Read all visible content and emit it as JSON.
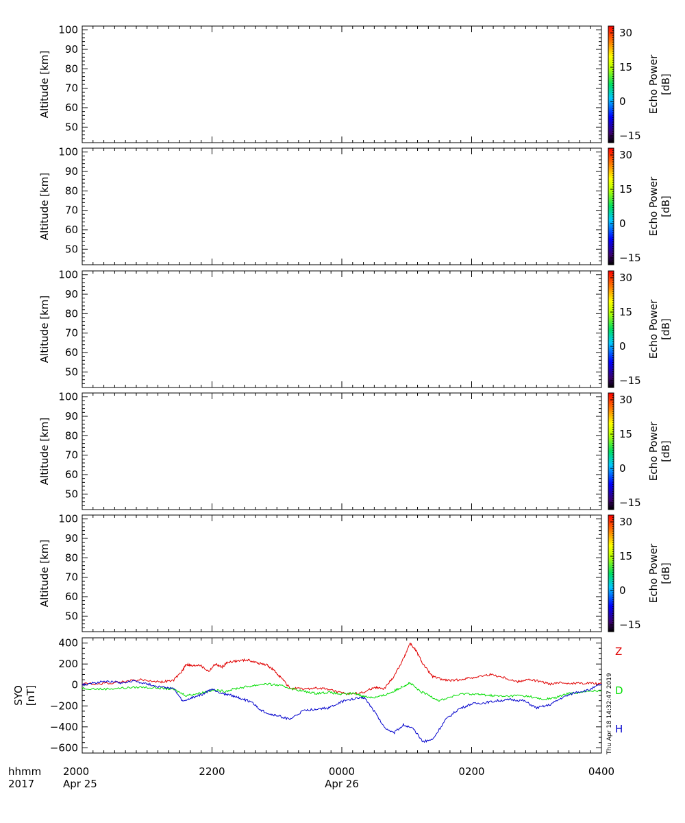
{
  "chart_data": [
    {
      "type": "heatmap",
      "panel": 1,
      "ylabel": "Altitude  [km]",
      "yticks": [
        50,
        60,
        70,
        80,
        90,
        100
      ],
      "ylim": [
        42,
        102
      ],
      "xlim_hours": [
        20,
        28
      ],
      "data": [],
      "colorbar": {
        "label_line1": "Echo Power",
        "label_line2": "[dB]",
        "ticks": [
          "30",
          "15",
          "0",
          "−15"
        ],
        "range": [
          -18,
          33
        ]
      }
    },
    {
      "type": "heatmap",
      "panel": 2,
      "ylabel": "Altitude  [km]",
      "yticks": [
        50,
        60,
        70,
        80,
        90,
        100
      ],
      "ylim": [
        42,
        102
      ],
      "xlim_hours": [
        20,
        28
      ],
      "data": [],
      "colorbar": {
        "label_line1": "Echo Power",
        "label_line2": "[dB]",
        "ticks": [
          "30",
          "15",
          "0",
          "−15"
        ],
        "range": [
          -18,
          33
        ]
      }
    },
    {
      "type": "heatmap",
      "panel": 3,
      "ylabel": "Altitude  [km]",
      "yticks": [
        50,
        60,
        70,
        80,
        90,
        100
      ],
      "ylim": [
        42,
        102
      ],
      "xlim_hours": [
        20,
        28
      ],
      "data": [],
      "colorbar": {
        "label_line1": "Echo Power",
        "label_line2": "[dB]",
        "ticks": [
          "30",
          "15",
          "0",
          "−15"
        ],
        "range": [
          -18,
          33
        ]
      }
    },
    {
      "type": "heatmap",
      "panel": 4,
      "ylabel": "Altitude  [km]",
      "yticks": [
        50,
        60,
        70,
        80,
        90,
        100
      ],
      "ylim": [
        42,
        102
      ],
      "xlim_hours": [
        20,
        28
      ],
      "data": [],
      "colorbar": {
        "label_line1": "Echo Power",
        "label_line2": "[dB]",
        "ticks": [
          "30",
          "15",
          "0",
          "−15"
        ],
        "range": [
          -18,
          33
        ]
      }
    },
    {
      "type": "heatmap",
      "panel": 5,
      "ylabel": "Altitude  [km]",
      "yticks": [
        50,
        60,
        70,
        80,
        90,
        100
      ],
      "ylim": [
        42,
        102
      ],
      "xlim_hours": [
        20,
        28
      ],
      "data": [],
      "colorbar": {
        "label_line1": "Echo Power",
        "label_line2": "[dB]",
        "ticks": [
          "30",
          "15",
          "0",
          "−15"
        ],
        "range": [
          -18,
          33
        ]
      }
    },
    {
      "type": "line",
      "panel": 6,
      "ylabel_line1": "SYO",
      "ylabel_line2": "[nT]",
      "yticks": [
        400,
        200,
        0,
        -200,
        -400,
        -600
      ],
      "ytick_labels": [
        "400",
        "200",
        "0",
        "−200",
        "−400",
        "−600"
      ],
      "ylim": [
        -650,
        450
      ],
      "xlim_hours": [
        20,
        28
      ],
      "series": [
        {
          "name": "Z",
          "color": "#e00000",
          "x": [
            20.0,
            20.3,
            20.6,
            20.9,
            21.2,
            21.4,
            21.55,
            21.6,
            21.7,
            21.8,
            21.95,
            22.05,
            22.15,
            22.25,
            22.4,
            22.55,
            22.7,
            22.85,
            22.95,
            23.05,
            23.2,
            23.4,
            23.6,
            23.8,
            24.0,
            24.2,
            24.35,
            24.5,
            24.65,
            24.8,
            24.95,
            25.05,
            25.15,
            25.25,
            25.4,
            25.55,
            25.7,
            25.9,
            26.1,
            26.3,
            26.5,
            26.7,
            26.85,
            27.0,
            27.2,
            27.4,
            27.6,
            27.8,
            28.0
          ],
          "y": [
            10,
            12,
            30,
            50,
            30,
            40,
            140,
            200,
            180,
            195,
            130,
            200,
            170,
            220,
            230,
            240,
            210,
            190,
            140,
            80,
            -30,
            -40,
            -30,
            -40,
            -80,
            -80,
            -70,
            -20,
            -40,
            80,
            250,
            400,
            320,
            200,
            80,
            50,
            40,
            60,
            80,
            100,
            70,
            30,
            50,
            40,
            10,
            20,
            15,
            20,
            10
          ]
        },
        {
          "name": "D",
          "color": "#00dd00",
          "x": [
            20.0,
            20.3,
            20.6,
            20.9,
            21.2,
            21.4,
            21.6,
            21.8,
            22.0,
            22.2,
            22.4,
            22.6,
            22.8,
            23.0,
            23.2,
            23.4,
            23.6,
            23.8,
            24.0,
            24.2,
            24.35,
            24.5,
            24.65,
            24.8,
            24.95,
            25.05,
            25.2,
            25.35,
            25.5,
            25.7,
            25.9,
            26.1,
            26.3,
            26.5,
            26.7,
            26.9,
            27.1,
            27.3,
            27.5,
            27.7,
            28.0
          ],
          "y": [
            -30,
            -40,
            -30,
            -20,
            -30,
            -40,
            -100,
            -80,
            -50,
            -60,
            -30,
            -10,
            10,
            0,
            -30,
            -60,
            -80,
            -70,
            -90,
            -80,
            -110,
            -120,
            -100,
            -60,
            -10,
            20,
            -60,
            -100,
            -150,
            -110,
            -80,
            -90,
            -100,
            -110,
            -100,
            -110,
            -140,
            -120,
            -80,
            -70,
            -50
          ]
        },
        {
          "name": "H",
          "color": "#0000cc",
          "x": [
            20.0,
            20.2,
            20.4,
            20.6,
            20.8,
            21.0,
            21.2,
            21.4,
            21.55,
            21.7,
            21.85,
            22.0,
            22.15,
            22.3,
            22.45,
            22.6,
            22.75,
            22.9,
            23.05,
            23.2,
            23.4,
            23.6,
            23.8,
            24.0,
            24.2,
            24.35,
            24.5,
            24.65,
            24.8,
            24.95,
            25.1,
            25.25,
            25.4,
            25.6,
            25.8,
            26.0,
            26.2,
            26.4,
            26.6,
            26.8,
            27.0,
            27.2,
            27.4,
            27.6,
            27.8,
            28.0
          ],
          "y": [
            0,
            20,
            40,
            20,
            40,
            10,
            -20,
            -30,
            -160,
            -120,
            -90,
            -40,
            -80,
            -100,
            -130,
            -160,
            -240,
            -280,
            -300,
            -330,
            -250,
            -230,
            -220,
            -160,
            -130,
            -120,
            -250,
            -400,
            -460,
            -380,
            -420,
            -540,
            -520,
            -330,
            -230,
            -180,
            -170,
            -150,
            -140,
            -150,
            -220,
            -190,
            -120,
            -70,
            -50,
            10
          ]
        }
      ],
      "legend_placement": "right"
    }
  ],
  "x_axis": {
    "row_label": "hhmm",
    "year_label": "2017",
    "ticks": [
      {
        "hour": 20,
        "label": "2000",
        "date": "Apr 25"
      },
      {
        "hour": 22,
        "label": "2200",
        "date": ""
      },
      {
        "hour": 24,
        "label": "0000",
        "date": "Apr 26"
      },
      {
        "hour": 26,
        "label": "0200",
        "date": ""
      },
      {
        "hour": 28,
        "label": "0400",
        "date": ""
      }
    ]
  },
  "timestamp": "Thu Apr 18 14:32:47 2019",
  "colors": {
    "Z": "#e00000",
    "D": "#00dd00",
    "H": "#0000cc"
  }
}
